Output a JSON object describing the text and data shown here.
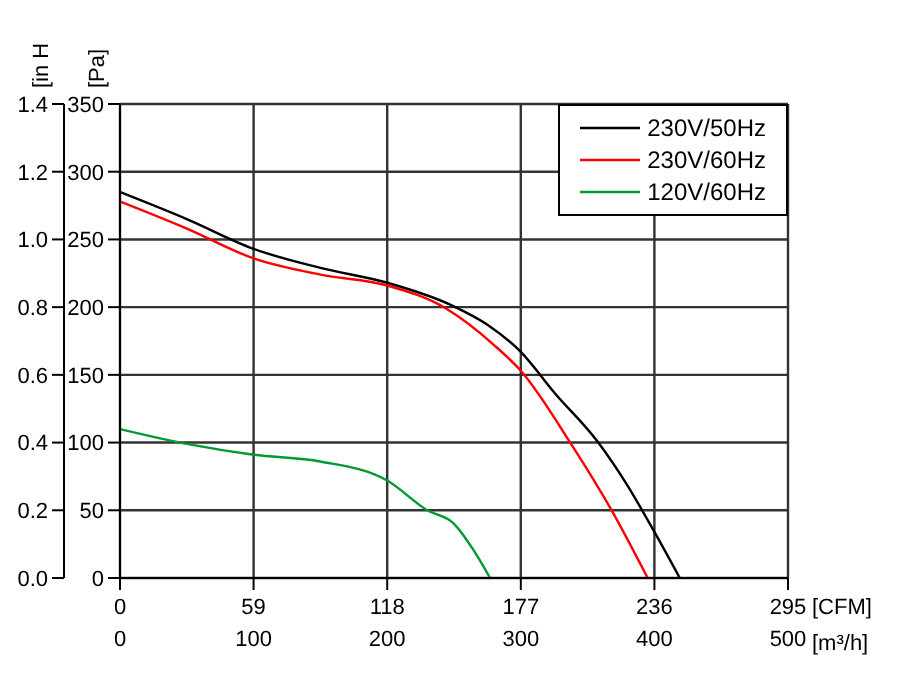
{
  "chart_data": {
    "type": "line",
    "xlabel": "[m³/h]",
    "x2label": "[CFM]",
    "ylabel": "[Pa]",
    "y2label": "[in H",
    "xlim": [
      0,
      500
    ],
    "xticks": [
      0,
      100,
      200,
      300,
      400,
      500
    ],
    "x2lim": [
      0,
      295
    ],
    "x2ticks": [
      0,
      59,
      118,
      177,
      236,
      295
    ],
    "ylim": [
      0,
      350
    ],
    "yticks": [
      0,
      50,
      100,
      150,
      200,
      250,
      300,
      350
    ],
    "y2lim": [
      0,
      1.4
    ],
    "y2ticks": [
      {
        "value": 0,
        "label": "0.0"
      },
      0.2,
      0.4,
      0.6,
      0.8,
      {
        "value": 1,
        "label": "1.0"
      },
      1.2,
      1.4
    ],
    "grid": true,
    "legend": "top right",
    "marker": "none",
    "line_style": "solid",
    "series": [
      {
        "name": "230V/50Hz",
        "color": "#000000",
        "x": [
          0,
          50,
          100,
          150,
          200,
          249,
          275,
          300,
          325,
          358,
          380,
          400,
          419
        ],
        "values": [
          285,
          265,
          243,
          229,
          218,
          201,
          187,
          167,
          137,
          100,
          68,
          34,
          0
        ]
      },
      {
        "name": "230V/60Hz",
        "color": "#ff0000",
        "x": [
          0,
          50,
          100,
          150,
          200,
          244,
          280,
          300,
          337,
          368,
          395
        ],
        "values": [
          278,
          258,
          236,
          224,
          216,
          199,
          172,
          153,
          100,
          50,
          0
        ]
      },
      {
        "name": "120V/60Hz",
        "color": "#009933",
        "x": [
          0,
          50,
          100,
          150,
          200,
          230,
          250,
          265,
          277
        ],
        "values": [
          110,
          99,
          91,
          86,
          72,
          50,
          40,
          20,
          0
        ]
      }
    ]
  }
}
